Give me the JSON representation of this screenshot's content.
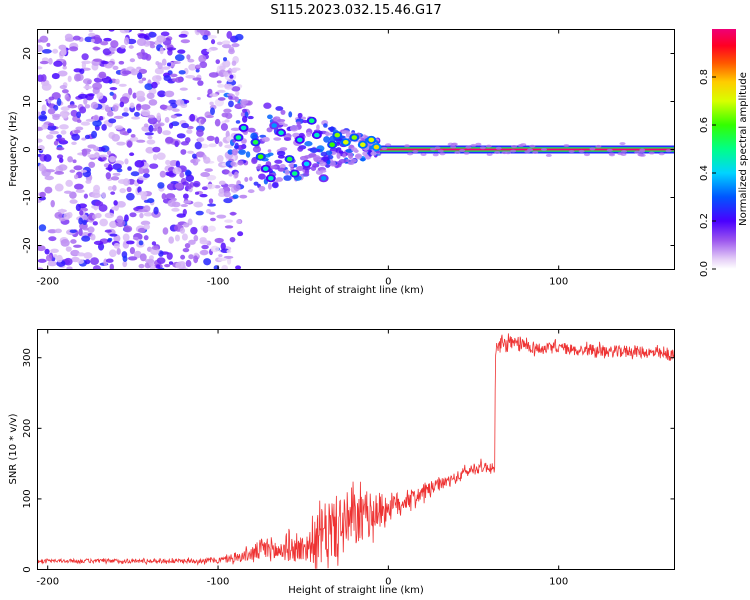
{
  "title": "S115.2023.032.15.46.G17",
  "chart_data": [
    {
      "type": "heatmap",
      "xlabel": "Height of straight line (km)",
      "ylabel": "Frequency (Hz)",
      "xlim": [
        -206,
        168
      ],
      "ylim": [
        -25,
        25
      ],
      "xticks": [
        -200,
        -100,
        0,
        100
      ],
      "xtick_labels": [
        "-200",
        "-100",
        "0",
        "100"
      ],
      "yticks": [
        -20,
        -10,
        0,
        10,
        20
      ],
      "ytick_labels": [
        "-20",
        "-10",
        "0",
        "10",
        "20"
      ],
      "colorbar": {
        "label": "Normalized spectral amplitude",
        "range": [
          0,
          1
        ],
        "ticks": [
          0.0,
          0.2,
          0.4,
          0.6,
          0.8
        ],
        "tick_labels": [
          "0.0",
          "0.2",
          "0.4",
          "0.6",
          "0.8"
        ]
      },
      "features": {
        "noise_region_x": [
          -206,
          -95
        ],
        "scintillation_region_x": [
          -95,
          -5
        ],
        "carrier_line": {
          "x": [
            -5,
            168
          ],
          "frequency": 0,
          "amplitude": 1.0
        },
        "scattered_blobs": [
          {
            "x": -88,
            "y": 2.5,
            "a": 0.5
          },
          {
            "x": -85,
            "y": 4.5,
            "a": 0.45
          },
          {
            "x": -78,
            "y": 1.5,
            "a": 0.55
          },
          {
            "x": -75,
            "y": -1.5,
            "a": 0.6
          },
          {
            "x": -72,
            "y": -4,
            "a": 0.45
          },
          {
            "x": -69,
            "y": -6,
            "a": 0.45
          },
          {
            "x": -67,
            "y": 5,
            "a": 0.35
          },
          {
            "x": -63,
            "y": 3.5,
            "a": 0.45
          },
          {
            "x": -58,
            "y": -2,
            "a": 0.55
          },
          {
            "x": -55,
            "y": -5,
            "a": 0.5
          },
          {
            "x": -52,
            "y": 2,
            "a": 0.45
          },
          {
            "x": -48,
            "y": -3,
            "a": 0.4
          },
          {
            "x": -45,
            "y": 6,
            "a": 0.5
          },
          {
            "x": -42,
            "y": 3,
            "a": 0.45
          },
          {
            "x": -38,
            "y": -6,
            "a": 0.35
          },
          {
            "x": -33,
            "y": 1,
            "a": 0.6
          },
          {
            "x": -30,
            "y": 3,
            "a": 0.65
          },
          {
            "x": -25,
            "y": 1.5,
            "a": 0.7
          },
          {
            "x": -20,
            "y": 2.5,
            "a": 0.65
          },
          {
            "x": -15,
            "y": 1,
            "a": 0.7
          },
          {
            "x": -10,
            "y": 2,
            "a": 0.7
          },
          {
            "x": -7,
            "y": 0.5,
            "a": 0.75
          }
        ]
      }
    },
    {
      "type": "line",
      "xlabel": "Height of straight line (km)",
      "ylabel": "SNR (10 * v/v)",
      "xlim": [
        -206,
        168
      ],
      "ylim": [
        0,
        340
      ],
      "xticks": [
        -200,
        -100,
        0,
        100
      ],
      "xtick_labels": [
        "-200",
        "-100",
        "0",
        "100"
      ],
      "yticks": [
        0,
        100,
        200,
        300
      ],
      "ytick_labels": [
        "0",
        "100",
        "200",
        "300"
      ],
      "color": "#ee3333",
      "series": [
        {
          "x": [
            -206,
            -180,
            -160,
            -140,
            -120,
            -100,
            -90,
            -80,
            -75,
            -70,
            -65,
            -60,
            -55,
            -50,
            -45,
            -40,
            -35,
            -30,
            -25,
            -20,
            -15,
            -10,
            -5,
            0,
            5,
            10,
            15,
            20,
            25,
            30,
            35,
            40,
            45,
            50,
            55,
            60,
            62,
            63,
            65,
            70,
            80,
            90,
            100,
            110,
            120,
            130,
            140,
            150,
            160,
            168
          ],
          "y": [
            12,
            12,
            12,
            12,
            12,
            13,
            16,
            22,
            28,
            30,
            25,
            30,
            28,
            30,
            35,
            45,
            55,
            60,
            65,
            70,
            72,
            78,
            85,
            88,
            92,
            98,
            102,
            108,
            115,
            120,
            125,
            130,
            138,
            142,
            145,
            145,
            140,
            312,
            315,
            320,
            318,
            312,
            315,
            310,
            312,
            308,
            310,
            308,
            305,
            302
          ],
          "noise": [
            2,
            3,
            3,
            3,
            3,
            4,
            6,
            10,
            16,
            18,
            16,
            18,
            18,
            20,
            25,
            40,
            45,
            45,
            45,
            40,
            35,
            30,
            25,
            20,
            18,
            14,
            12,
            12,
            10,
            8,
            8,
            8,
            8,
            8,
            8,
            8,
            8,
            10,
            12,
            12,
            10,
            8,
            8,
            8,
            8,
            8,
            8,
            8,
            8,
            8
          ]
        }
      ]
    }
  ]
}
